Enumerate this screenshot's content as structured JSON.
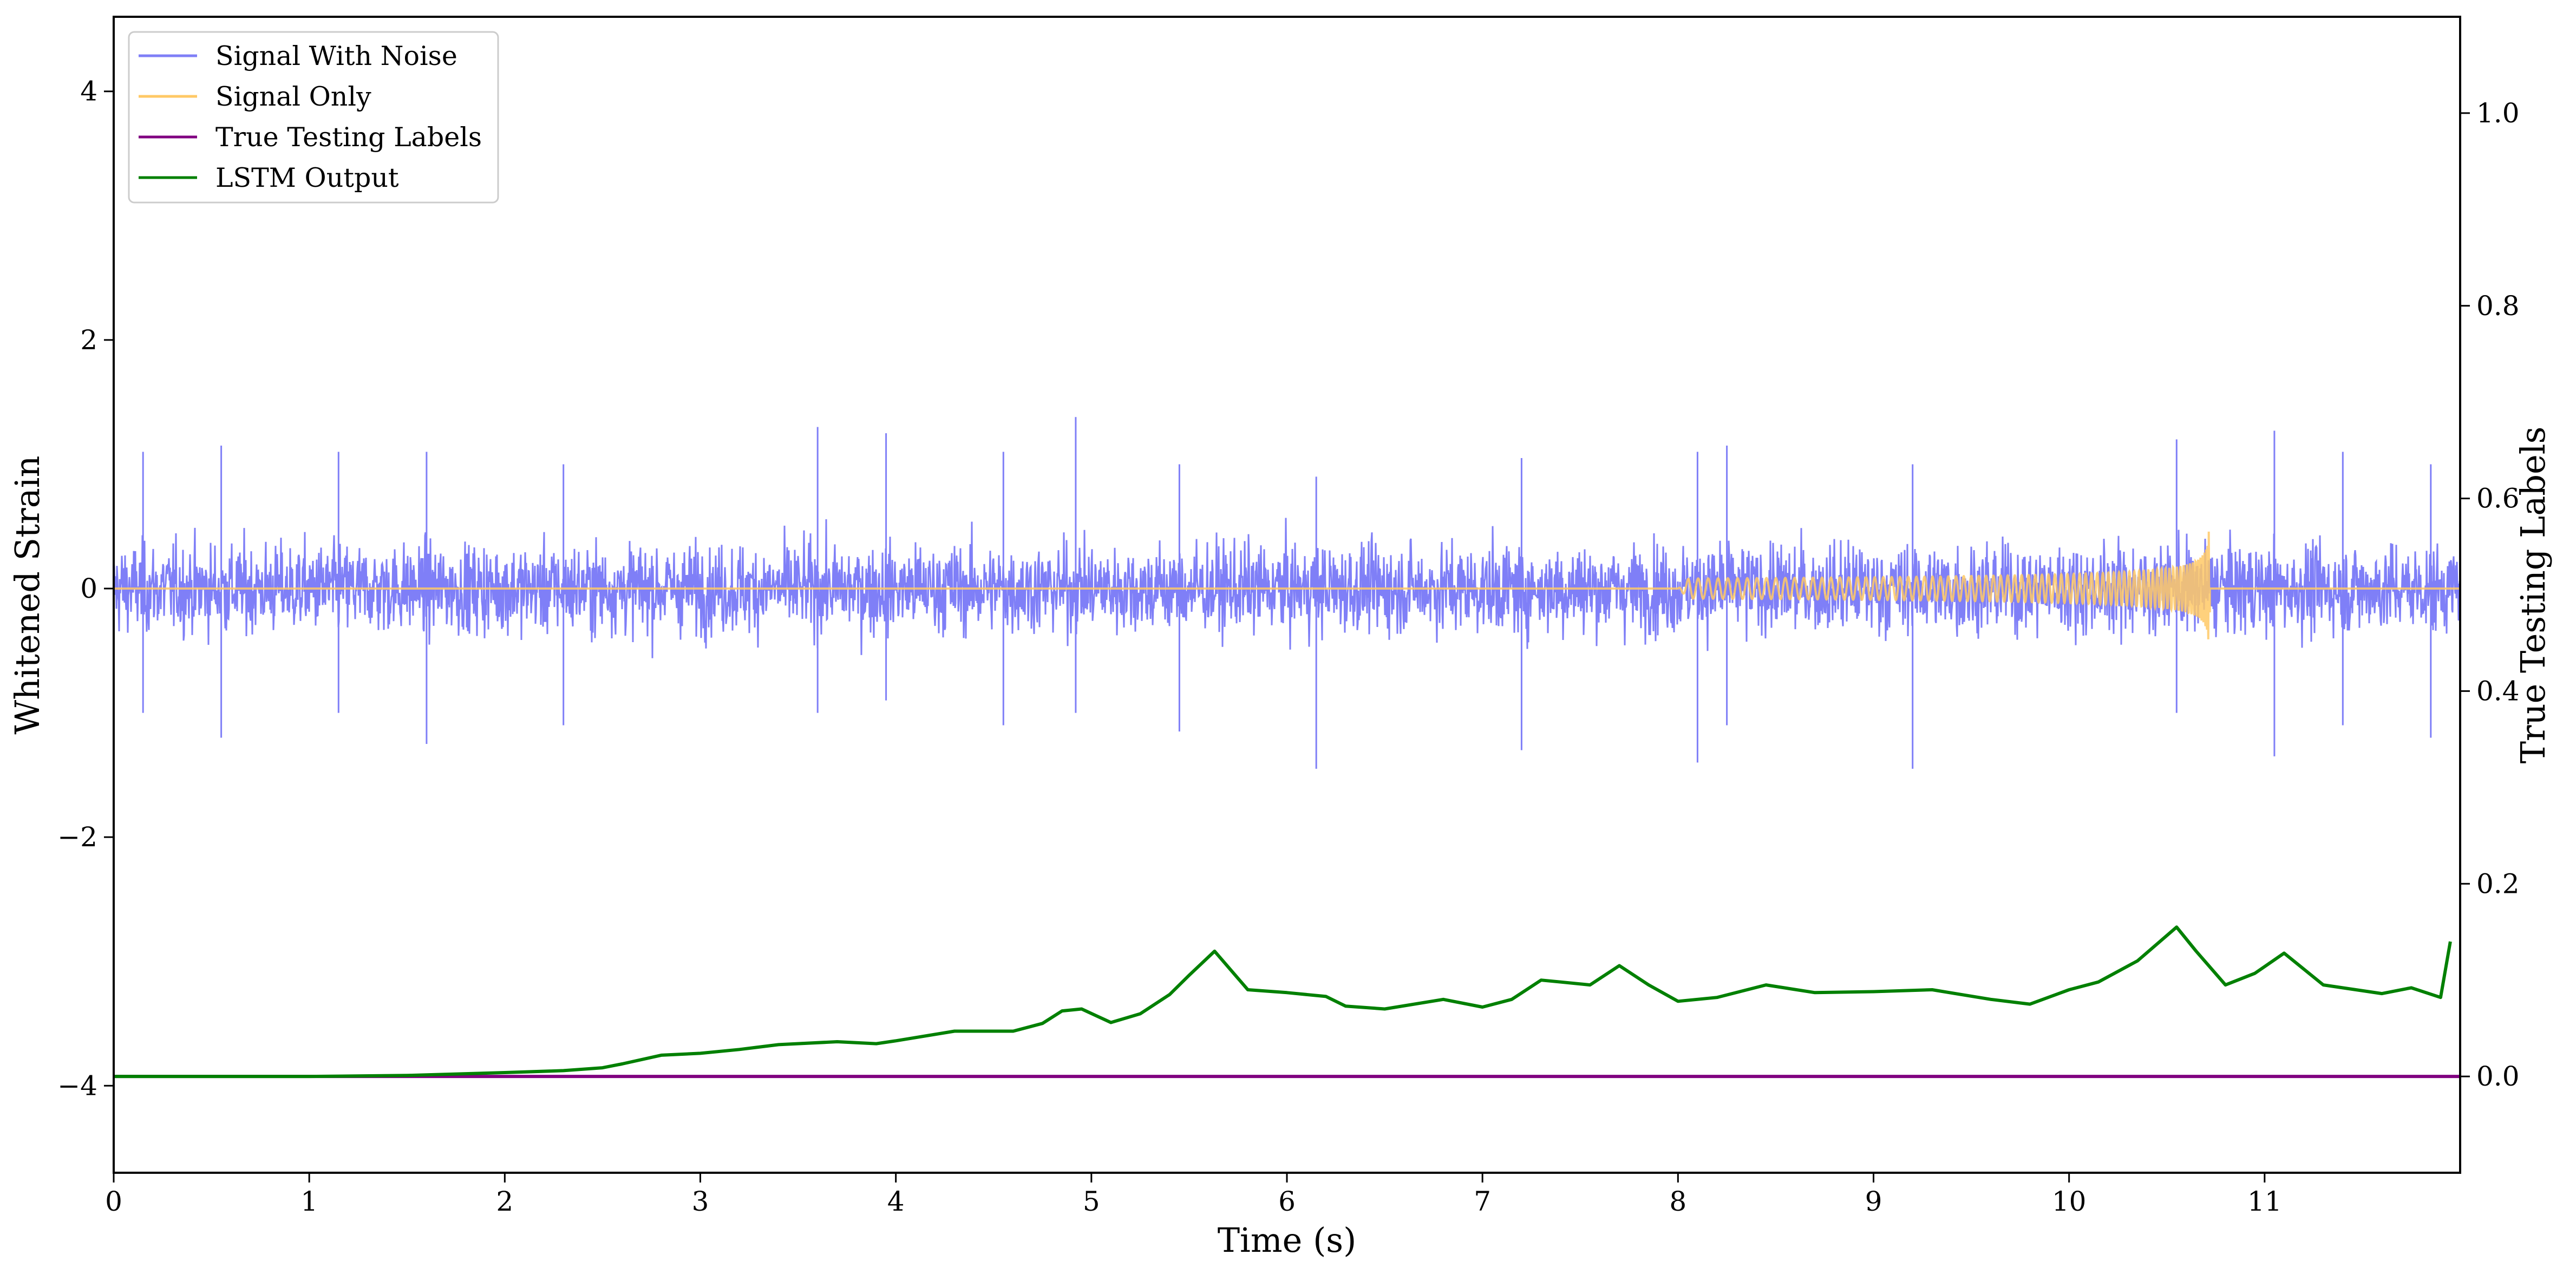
{
  "chart_data": {
    "type": "line",
    "title": "",
    "xlabel": "Time (s)",
    "ylabel": "Whitened Strain",
    "y2label": "True Testing Labels",
    "xlim": [
      0,
      12
    ],
    "ylim": [
      -4.7,
      4.6
    ],
    "y2lim": [
      -0.1,
      1.1
    ],
    "grid": false,
    "legend_position": "top-left",
    "x_ticks": [
      "0",
      "1",
      "2",
      "3",
      "4",
      "5",
      "6",
      "7",
      "8",
      "9",
      "10",
      "11"
    ],
    "y_ticks": [
      "−4",
      "−2",
      "0",
      "2",
      "4"
    ],
    "y2_ticks": [
      "0.0",
      "0.2",
      "0.4",
      "0.6",
      "0.8",
      "1.0"
    ],
    "legend": [
      "Signal With Noise",
      "Signal Only",
      "True Testing Labels",
      "LSTM Output"
    ],
    "series": [
      {
        "name": "Signal With Noise",
        "axis": "left",
        "color": "#7f7ff7",
        "description": "dense noise, mostly within about ±0.6, spikes up to about ±1.4",
        "spikes": [
          [
            0.15,
            1.1,
            -1.0
          ],
          [
            0.55,
            1.15,
            -1.2
          ],
          [
            1.15,
            1.1,
            -1.0
          ],
          [
            1.6,
            1.1,
            -1.25
          ],
          [
            2.3,
            1.0,
            -1.1
          ],
          [
            3.6,
            1.3,
            -1.0
          ],
          [
            3.95,
            1.25,
            -0.9
          ],
          [
            4.55,
            1.1,
            -1.1
          ],
          [
            4.92,
            1.38,
            -1.0
          ],
          [
            5.45,
            1.0,
            -1.15
          ],
          [
            6.15,
            0.9,
            -1.45
          ],
          [
            7.2,
            1.05,
            -1.3
          ],
          [
            8.1,
            1.1,
            -1.4
          ],
          [
            8.25,
            1.15,
            -1.1
          ],
          [
            9.2,
            1.0,
            -1.45
          ],
          [
            10.55,
            1.2,
            -1.0
          ],
          [
            11.05,
            1.27,
            -1.35
          ],
          [
            11.4,
            1.1,
            -1.1
          ],
          [
            11.85,
            1.0,
            -1.2
          ]
        ]
      },
      {
        "name": "Signal Only",
        "axis": "left",
        "color": "#ffc966",
        "description": "flat at 0 except a chirp growing to about ±0.5 and ending near t = 10.7 s",
        "chirp": {
          "start": 8.0,
          "end": 10.72,
          "peak_amplitude": 0.5
        }
      },
      {
        "name": "True Testing Labels",
        "axis": "right",
        "color": "#800080",
        "x": [
          0,
          12
        ],
        "y": [
          0.0,
          0.0
        ]
      },
      {
        "name": "LSTM Output",
        "axis": "right",
        "color": "#008000",
        "x": [
          0.0,
          1.0,
          1.5,
          2.0,
          2.3,
          2.5,
          2.6,
          2.8,
          3.0,
          3.2,
          3.4,
          3.7,
          3.9,
          4.0,
          4.3,
          4.6,
          4.75,
          4.85,
          4.95,
          5.1,
          5.25,
          5.4,
          5.5,
          5.63,
          5.8,
          6.0,
          6.2,
          6.3,
          6.5,
          6.8,
          7.0,
          7.15,
          7.3,
          7.4,
          7.55,
          7.7,
          7.85,
          8.0,
          8.2,
          8.45,
          8.7,
          9.0,
          9.3,
          9.45,
          9.6,
          9.8,
          10.0,
          10.15,
          10.35,
          10.55,
          10.65,
          10.8,
          10.95,
          11.1,
          11.3,
          11.6,
          11.75,
          11.9,
          11.95
        ],
        "y": [
          0.0,
          0.0,
          0.001,
          0.004,
          0.006,
          0.009,
          0.013,
          0.022,
          0.024,
          0.028,
          0.033,
          0.036,
          0.034,
          0.037,
          0.047,
          0.047,
          0.055,
          0.068,
          0.07,
          0.056,
          0.065,
          0.085,
          0.105,
          0.13,
          0.09,
          0.087,
          0.083,
          0.073,
          0.07,
          0.08,
          0.072,
          0.08,
          0.1,
          0.098,
          0.095,
          0.115,
          0.095,
          0.078,
          0.082,
          0.095,
          0.087,
          0.088,
          0.09,
          0.085,
          0.08,
          0.075,
          0.09,
          0.098,
          0.12,
          0.155,
          0.13,
          0.095,
          0.107,
          0.128,
          0.095,
          0.086,
          0.092,
          0.082,
          0.14
        ]
      }
    ]
  }
}
